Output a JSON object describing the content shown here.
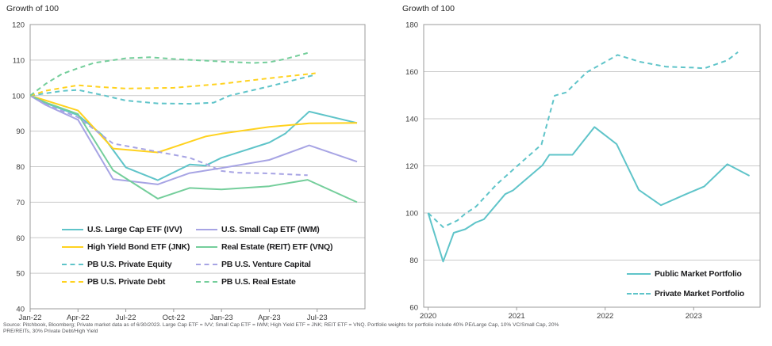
{
  "footer": {
    "line1": "Source: Pitchbook, Bloomberg; Private market data as of 6/30/2023. Large Cap ETF = IVV; Small Cap ETF = IWM; High Yield ETF = JNK; REIT ETF = VNQ. Portfolio weights for portfolio include 40% PE/Large Cap, 10% VC/Small Cap, 20%",
    "line2": "PRE/REITs, 30% Private Debt/High Yield"
  },
  "chart_data": [
    {
      "type": "line",
      "title": "Growth of 100",
      "xlabel": "",
      "ylabel": "",
      "xlim": [
        0,
        21
      ],
      "ylim": [
        40,
        120
      ],
      "grid": true,
      "legend_position": "inside-bottom-left",
      "y_ticks": [
        40,
        50,
        60,
        70,
        80,
        90,
        100,
        110,
        120
      ],
      "x_ticks": [
        {
          "label": "Jan-22",
          "x": 0
        },
        {
          "label": "Apr-22",
          "x": 3
        },
        {
          "label": "Jul-22",
          "x": 6
        },
        {
          "label": "Oct-22",
          "x": 9
        },
        {
          "label": "Jan-23",
          "x": 12
        },
        {
          "label": "Apr-23",
          "x": 15
        },
        {
          "label": "Jul-23",
          "x": 18
        }
      ],
      "series": [
        {
          "name": "U.S. Large Cap ETF (IVV)",
          "color": "#5fc4c9",
          "dash": false,
          "points": [
            [
              0,
              100
            ],
            [
              1,
              97.8
            ],
            [
              3,
              94.5
            ],
            [
              4.5,
              89.0
            ],
            [
              6,
              79.8
            ],
            [
              8,
              76.2
            ],
            [
              10,
              80.6
            ],
            [
              11,
              80.3
            ],
            [
              12,
              82.5
            ],
            [
              15,
              86.8
            ],
            [
              16,
              89.3
            ],
            [
              17.5,
              95.5
            ],
            [
              20.5,
              92.3
            ]
          ]
        },
        {
          "name": "U.S. Small Cap ETF (IWM)",
          "color": "#a7a4e4",
          "dash": false,
          "points": [
            [
              0,
              100
            ],
            [
              1,
              97.3
            ],
            [
              3,
              93.2
            ],
            [
              5.2,
              76.5
            ],
            [
              8,
              75.0
            ],
            [
              10,
              78.2
            ],
            [
              12,
              79.6
            ],
            [
              15,
              81.9
            ],
            [
              17.5,
              86.0
            ],
            [
              20.5,
              81.4
            ]
          ]
        },
        {
          "name": "High Yield Bond ETF (JNK)",
          "color": "#ffd21f",
          "dash": false,
          "points": [
            [
              0,
              100
            ],
            [
              1,
              98.6
            ],
            [
              3,
              95.8
            ],
            [
              5.2,
              85.1
            ],
            [
              8,
              84.0
            ],
            [
              10,
              87.0
            ],
            [
              11,
              88.5
            ],
            [
              12,
              89.3
            ],
            [
              15,
              91.2
            ],
            [
              17.5,
              92.2
            ],
            [
              20.5,
              92.3
            ]
          ]
        },
        {
          "name": "Real Estate (REIT) ETF (VNQ)",
          "color": "#74ce9b",
          "dash": false,
          "points": [
            [
              0,
              100
            ],
            [
              1,
              98.0
            ],
            [
              3,
              94.8
            ],
            [
              5.2,
              79.0
            ],
            [
              8,
              71.0
            ],
            [
              10,
              74.0
            ],
            [
              12,
              73.6
            ],
            [
              15,
              74.5
            ],
            [
              17.4,
              76.3
            ],
            [
              20.5,
              70.0
            ]
          ]
        },
        {
          "name": "PB U.S. Private Equity",
          "color": "#5fc4c9",
          "dash": true,
          "points": [
            [
              0,
              100
            ],
            [
              2,
              101.3
            ],
            [
              3,
              101.6
            ],
            [
              4.5,
              100.2
            ],
            [
              6,
              98.6
            ],
            [
              8,
              97.8
            ],
            [
              10,
              97.7
            ],
            [
              11.5,
              98.0
            ],
            [
              12.5,
              100.0
            ],
            [
              15,
              102.6
            ],
            [
              17.9,
              105.9
            ]
          ]
        },
        {
          "name": "PB U.S. Venture Capital",
          "color": "#a7a4e4",
          "dash": true,
          "points": [
            [
              0,
              100
            ],
            [
              1,
              97.5
            ],
            [
              3,
              93.9
            ],
            [
              5.2,
              86.5
            ],
            [
              8,
              84.2
            ],
            [
              10,
              82.5
            ],
            [
              11,
              80.8
            ],
            [
              12,
              78.8
            ],
            [
              13,
              78.3
            ],
            [
              15,
              78.1
            ],
            [
              17.4,
              77.6
            ]
          ]
        },
        {
          "name": "PB U.S. Private Debt",
          "color": "#ffd21f",
          "dash": true,
          "points": [
            [
              0,
              100
            ],
            [
              1,
              101.4
            ],
            [
              3,
              102.9
            ],
            [
              4.5,
              102.4
            ],
            [
              6,
              102.0
            ],
            [
              9,
              102.2
            ],
            [
              12,
              103.3
            ],
            [
              15,
              104.9
            ],
            [
              17.9,
              106.3
            ]
          ]
        },
        {
          "name": "PB U.S. Real Estate",
          "color": "#74ce9b",
          "dash": true,
          "points": [
            [
              0,
              100
            ],
            [
              1,
              103.4
            ],
            [
              2,
              106.1
            ],
            [
              3,
              107.7
            ],
            [
              4,
              109.2
            ],
            [
              6,
              110.5
            ],
            [
              7.5,
              110.8
            ],
            [
              9,
              110.3
            ],
            [
              12,
              109.6
            ],
            [
              14,
              109.2
            ],
            [
              15,
              109.4
            ],
            [
              16,
              110.3
            ],
            [
              17.4,
              112.0
            ]
          ]
        }
      ]
    },
    {
      "type": "line",
      "title": "Growth of 100",
      "xlabel": "",
      "ylabel": "",
      "xlim": [
        2019.95,
        2023.75
      ],
      "ylim": [
        60,
        180
      ],
      "grid": true,
      "legend_position": "inside-bottom-right",
      "y_ticks": [
        60,
        80,
        100,
        120,
        140,
        160,
        180
      ],
      "x_ticks": [
        {
          "label": "2020",
          "x": 2020
        },
        {
          "label": "2021",
          "x": 2021
        },
        {
          "label": "2022",
          "x": 2022
        },
        {
          "label": "2023",
          "x": 2023
        }
      ],
      "series": [
        {
          "name": "Public Market Portfolio",
          "color": "#5fc4c9",
          "dash": false,
          "points": [
            [
              2020.0,
              100
            ],
            [
              2020.17,
              79.4
            ],
            [
              2020.29,
              91.6
            ],
            [
              2020.42,
              93.1
            ],
            [
              2020.54,
              96.0
            ],
            [
              2020.63,
              97.3
            ],
            [
              2020.87,
              108.0
            ],
            [
              2020.96,
              109.6
            ],
            [
              2021.29,
              120.2
            ],
            [
              2021.37,
              124.7
            ],
            [
              2021.63,
              124.7
            ],
            [
              2021.88,
              136.5
            ],
            [
              2022.13,
              129.2
            ],
            [
              2022.38,
              109.8
            ],
            [
              2022.63,
              103.3
            ],
            [
              2022.9,
              107.8
            ],
            [
              2023.12,
              111.3
            ],
            [
              2023.38,
              120.7
            ],
            [
              2023.63,
              115.8
            ]
          ]
        },
        {
          "name": "Private Market Portfolio",
          "color": "#5fc4c9",
          "dash": true,
          "points": [
            [
              2020.0,
              100
            ],
            [
              2020.17,
              94.0
            ],
            [
              2020.33,
              96.8
            ],
            [
              2020.42,
              99.7
            ],
            [
              2020.54,
              102.7
            ],
            [
              2020.77,
              112.0
            ],
            [
              2021.02,
              120.4
            ],
            [
              2021.28,
              129.0
            ],
            [
              2021.43,
              149.8
            ],
            [
              2021.56,
              151.2
            ],
            [
              2021.79,
              159.7
            ],
            [
              2022.14,
              167.1
            ],
            [
              2022.39,
              164.2
            ],
            [
              2022.69,
              162.1
            ],
            [
              2023.0,
              161.7
            ],
            [
              2023.12,
              161.4
            ],
            [
              2023.38,
              164.8
            ],
            [
              2023.5,
              168.3
            ]
          ]
        }
      ]
    }
  ]
}
